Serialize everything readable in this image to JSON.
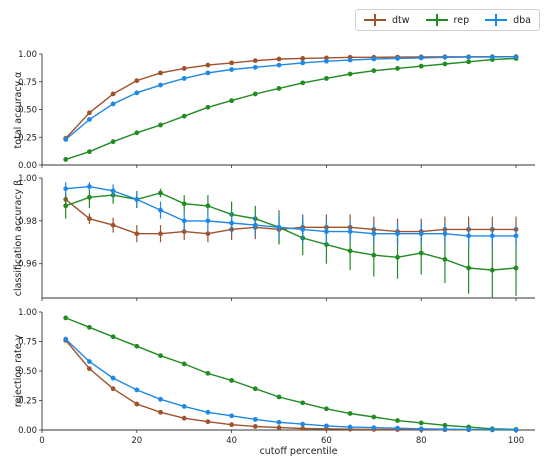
{
  "chart_data": [
    {
      "type": "line",
      "ylabel": "total accuracy α",
      "ylim": [
        0,
        1.0
      ],
      "yticks": [
        "0.00",
        "0.25",
        "0.50",
        "0.75",
        "1.00"
      ],
      "ytick_values": [
        0,
        0.25,
        0.5,
        0.75,
        1.0
      ],
      "x": [
        5,
        10,
        15,
        20,
        25,
        30,
        35,
        40,
        45,
        50,
        55,
        60,
        65,
        70,
        75,
        80,
        85,
        90,
        95,
        100
      ],
      "series": [
        {
          "name": "dtw",
          "color": "#a0522d",
          "values": [
            0.24,
            0.47,
            0.64,
            0.76,
            0.83,
            0.87,
            0.9,
            0.92,
            0.94,
            0.955,
            0.96,
            0.965,
            0.97,
            0.97,
            0.972,
            0.974,
            0.975,
            0.975,
            0.976,
            0.976
          ],
          "err": [
            0,
            0,
            0,
            0,
            0,
            0,
            0,
            0,
            0,
            0,
            0,
            0,
            0,
            0,
            0,
            0,
            0,
            0,
            0,
            0
          ]
        },
        {
          "name": "rep",
          "color": "#228b22",
          "values": [
            0.05,
            0.12,
            0.21,
            0.29,
            0.36,
            0.44,
            0.52,
            0.58,
            0.64,
            0.69,
            0.74,
            0.78,
            0.82,
            0.85,
            0.87,
            0.89,
            0.91,
            0.93,
            0.95,
            0.96
          ],
          "err": [
            0,
            0,
            0,
            0,
            0,
            0,
            0,
            0,
            0,
            0,
            0,
            0,
            0,
            0,
            0,
            0,
            0,
            0,
            0,
            0
          ]
        },
        {
          "name": "dba",
          "color": "#1e88e5",
          "values": [
            0.23,
            0.41,
            0.55,
            0.65,
            0.72,
            0.78,
            0.83,
            0.86,
            0.88,
            0.9,
            0.92,
            0.935,
            0.945,
            0.955,
            0.96,
            0.965,
            0.97,
            0.972,
            0.974,
            0.975
          ],
          "err": [
            0,
            0,
            0,
            0,
            0,
            0,
            0,
            0,
            0,
            0,
            0,
            0,
            0,
            0,
            0,
            0,
            0,
            0,
            0,
            0
          ]
        }
      ]
    },
    {
      "type": "line",
      "ylabel": "classification accuracy β",
      "ylim": [
        0.944,
        1.0
      ],
      "yticks": [
        "0.96",
        "0.98",
        "1.00"
      ],
      "ytick_values": [
        0.96,
        0.98,
        1.0
      ],
      "x": [
        5,
        10,
        15,
        20,
        25,
        30,
        35,
        40,
        45,
        50,
        55,
        60,
        65,
        70,
        75,
        80,
        85,
        90,
        95,
        100
      ],
      "series": [
        {
          "name": "dtw",
          "color": "#a0522d",
          "values": [
            0.99,
            0.981,
            0.978,
            0.974,
            0.974,
            0.975,
            0.974,
            0.976,
            0.977,
            0.976,
            0.977,
            0.977,
            0.977,
            0.976,
            0.975,
            0.975,
            0.976,
            0.976,
            0.976,
            0.976
          ],
          "err": [
            0.002,
            0.0025,
            0.0035,
            0.004,
            0.004,
            0.004,
            0.004,
            0.005,
            0.0055,
            0.006,
            0.006,
            0.006,
            0.006,
            0.006,
            0.006,
            0.006,
            0.006,
            0.006,
            0.006,
            0.006
          ]
        },
        {
          "name": "rep",
          "color": "#228b22",
          "values": [
            0.987,
            0.991,
            0.992,
            0.99,
            0.993,
            0.988,
            0.987,
            0.983,
            0.981,
            0.977,
            0.972,
            0.969,
            0.966,
            0.964,
            0.963,
            0.965,
            0.962,
            0.958,
            0.957,
            0.958
          ],
          "err": [
            0.006,
            0.005,
            0.004,
            0.004,
            0.002,
            0.004,
            0.005,
            0.006,
            0.006,
            0.008,
            0.008,
            0.009,
            0.009,
            0.01,
            0.01,
            0.01,
            0.011,
            0.012,
            0.013,
            0.013
          ]
        },
        {
          "name": "dba",
          "color": "#1e88e5",
          "values": [
            0.995,
            0.996,
            0.994,
            0.99,
            0.985,
            0.98,
            0.98,
            0.979,
            0.978,
            0.977,
            0.976,
            0.975,
            0.975,
            0.974,
            0.974,
            0.974,
            0.974,
            0.973,
            0.973,
            0.973
          ],
          "err": [
            0.003,
            0.002,
            0.003,
            0.0035,
            0.004,
            0.005,
            0.005,
            0.005,
            0.005,
            0.006,
            0.006,
            0.006,
            0.005,
            0.005,
            0.005,
            0.005,
            0.005,
            0.005,
            0.005,
            0.005
          ]
        }
      ]
    },
    {
      "type": "line",
      "ylabel": "rejection rate γ",
      "xlabel": "cutoff percentile",
      "ylim": [
        0,
        1.0
      ],
      "yticks": [
        "0.00",
        "0.25",
        "0.50",
        "0.75",
        "1.00"
      ],
      "ytick_values": [
        0,
        0.25,
        0.5,
        0.75,
        1.0
      ],
      "xticks": [
        "0",
        "20",
        "40",
        "60",
        "80",
        "100"
      ],
      "xtick_values": [
        0,
        20,
        40,
        60,
        80,
        100
      ],
      "x": [
        5,
        10,
        15,
        20,
        25,
        30,
        35,
        40,
        45,
        50,
        55,
        60,
        65,
        70,
        75,
        80,
        85,
        90,
        95,
        100
      ],
      "series": [
        {
          "name": "dtw",
          "color": "#a0522d",
          "values": [
            0.76,
            0.52,
            0.35,
            0.22,
            0.15,
            0.1,
            0.07,
            0.045,
            0.03,
            0.02,
            0.013,
            0.01,
            0.007,
            0.005,
            0.004,
            0.003,
            0.002,
            0.002,
            0.001,
            0.0
          ],
          "err": [
            0,
            0,
            0,
            0,
            0,
            0,
            0,
            0,
            0,
            0,
            0,
            0,
            0,
            0,
            0,
            0,
            0,
            0,
            0,
            0
          ]
        },
        {
          "name": "rep",
          "color": "#228b22",
          "values": [
            0.95,
            0.87,
            0.79,
            0.71,
            0.63,
            0.56,
            0.48,
            0.42,
            0.35,
            0.28,
            0.23,
            0.18,
            0.14,
            0.11,
            0.08,
            0.06,
            0.04,
            0.025,
            0.01,
            0.005
          ],
          "err": [
            0,
            0,
            0,
            0,
            0,
            0,
            0,
            0,
            0,
            0,
            0,
            0,
            0,
            0,
            0,
            0,
            0,
            0,
            0,
            0
          ]
        },
        {
          "name": "dba",
          "color": "#1e88e5",
          "values": [
            0.77,
            0.58,
            0.44,
            0.34,
            0.26,
            0.2,
            0.15,
            0.12,
            0.09,
            0.065,
            0.05,
            0.035,
            0.025,
            0.02,
            0.015,
            0.01,
            0.007,
            0.005,
            0.003,
            0.002
          ],
          "err": [
            0,
            0,
            0,
            0,
            0,
            0,
            0,
            0,
            0,
            0,
            0,
            0,
            0,
            0,
            0,
            0,
            0,
            0,
            0,
            0
          ]
        }
      ]
    }
  ],
  "legend": {
    "placement": "top-right",
    "items": [
      {
        "label": "dtw",
        "color": "#a0522d"
      },
      {
        "label": "rep",
        "color": "#228b22"
      },
      {
        "label": "dba",
        "color": "#1e88e5"
      }
    ]
  }
}
